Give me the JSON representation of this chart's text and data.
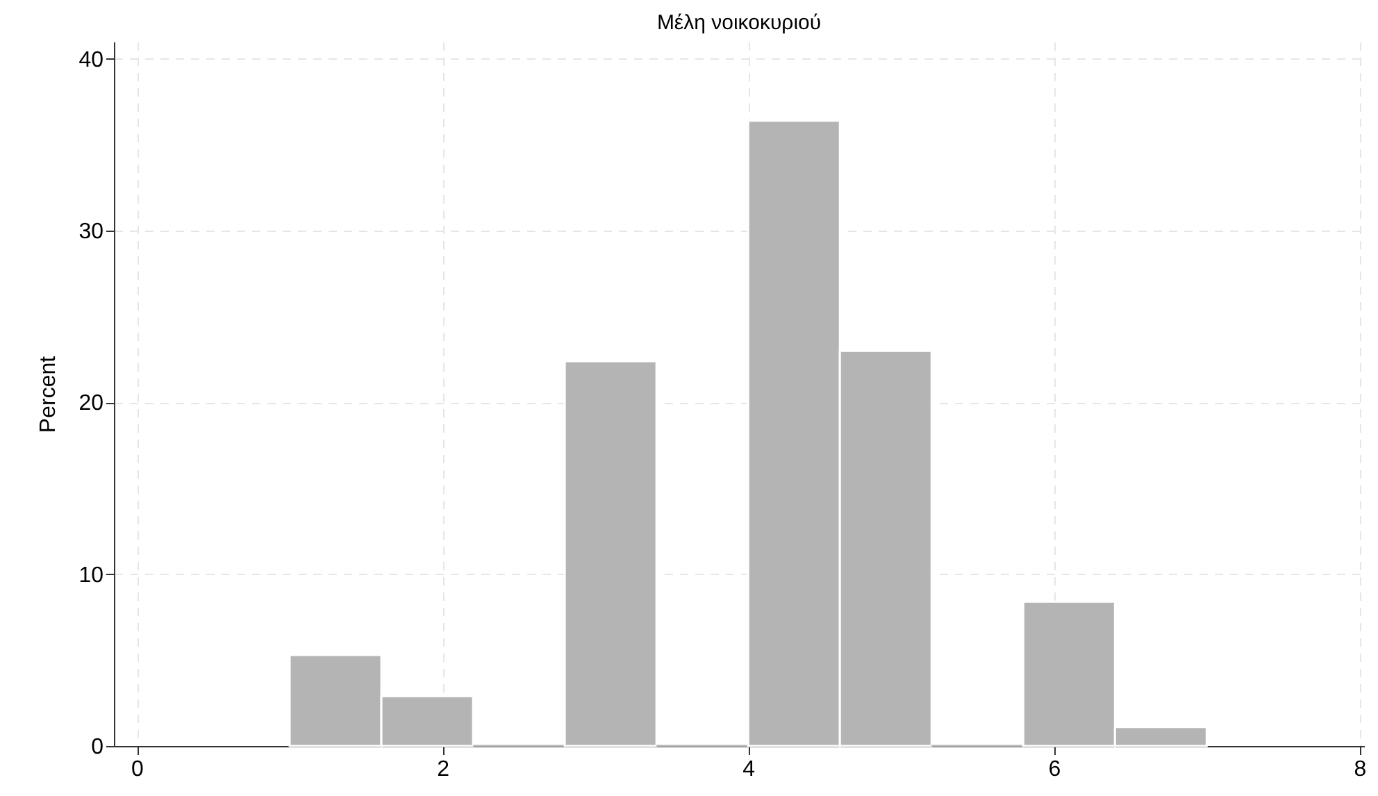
{
  "chart_data": {
    "type": "histogram",
    "title": "Μέλη νοικοκυριού",
    "ylabel": "Percent",
    "bins": [
      1,
      1.6,
      2.2,
      2.8,
      3.4,
      4.0,
      4.6,
      5.2,
      5.8,
      6.4,
      7.0
    ],
    "values": [
      5.3,
      2.9,
      0,
      22.4,
      0,
      36.4,
      23.0,
      0,
      8.4,
      1.1
    ],
    "color": "#b4b4b4",
    "xlim": [
      -0.15,
      8.03
    ],
    "xticks": [
      0,
      2,
      4,
      6,
      8
    ],
    "ylim": [
      0,
      41
    ],
    "yticks": [
      0,
      10,
      20,
      30,
      40
    ],
    "grid": true
  }
}
